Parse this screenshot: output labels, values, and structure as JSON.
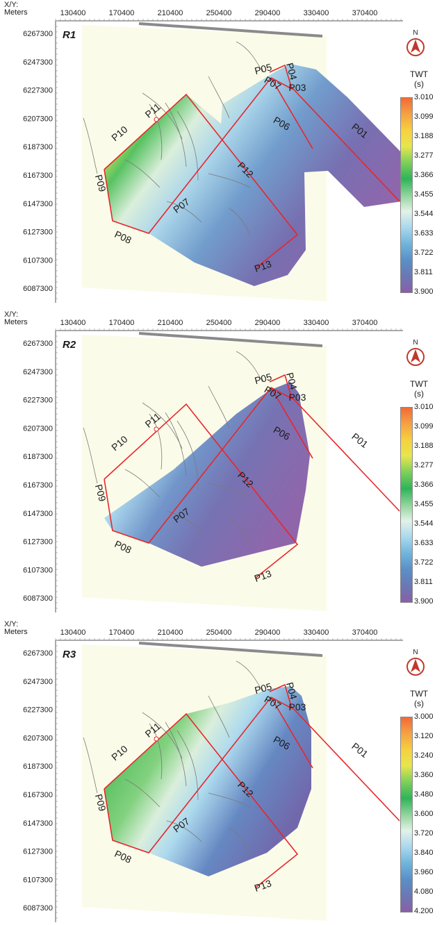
{
  "axis": {
    "title_line1": "X/Y:",
    "title_line2": "Meters",
    "x_ticks": [
      "130400",
      "170400",
      "210400",
      "250400",
      "290400",
      "330400",
      "370400"
    ],
    "y_ticks": [
      "6267300",
      "6247300",
      "6227300",
      "6207300",
      "6187300",
      "6167300",
      "6147300",
      "6127300",
      "6107300",
      "6087300"
    ]
  },
  "north_label": "N",
  "legend_title_line1": "TWT",
  "legend_title_line2": "(s)",
  "line_labels": [
    "P01",
    "P03",
    "P04",
    "P05",
    "P06",
    "P07",
    "P07",
    "P08",
    "P09",
    "P10",
    "P11",
    "P12",
    "P13"
  ],
  "colors": {
    "background_plot": "#fbfbe9",
    "profile_line": "#e8262a",
    "contour": "#7a7a7a",
    "ramp": [
      "#f26a35",
      "#f5a144",
      "#f6d13f",
      "#e6e64d",
      "#7ccf5a",
      "#2fb45a",
      "#8fd49a",
      "#e3f2e8",
      "#a9d8ee",
      "#6fb5dc",
      "#5a8fc8",
      "#6a78b5",
      "#8a5ea8"
    ]
  },
  "panels": [
    {
      "id": "R1",
      "legend_values": [
        "3.010",
        "3.099",
        "3.188",
        "3.277",
        "3.366",
        "3.455",
        "3.544",
        "3.633",
        "3.722",
        "3.811",
        "3.900"
      ]
    },
    {
      "id": "R2",
      "legend_values": [
        "3.010",
        "3.099",
        "3.188",
        "3.277",
        "3.366",
        "3.455",
        "3.544",
        "3.633",
        "3.722",
        "3.811",
        "3.900"
      ]
    },
    {
      "id": "R3",
      "legend_values": [
        "3.000",
        "3.120",
        "3.240",
        "3.360",
        "3.480",
        "3.600",
        "3.720",
        "3.840",
        "3.960",
        "4.080",
        "4.200"
      ]
    }
  ]
}
